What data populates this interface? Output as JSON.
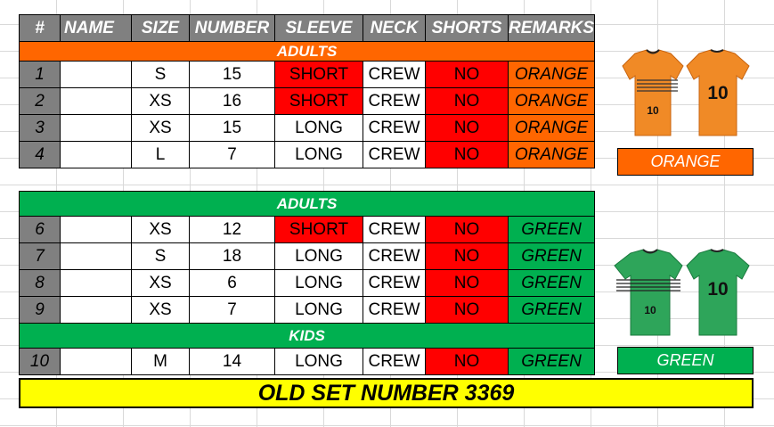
{
  "colors": {
    "orange": "#ff6600",
    "green": "#00b050",
    "red": "#ff0000",
    "gray": "#808080",
    "yellow": "#ffff00"
  },
  "headers": [
    "#",
    "NAME",
    "SIZE",
    "NUMBER",
    "SLEEVE",
    "NECK",
    "SHORTS",
    "REMARKS"
  ],
  "sections": {
    "adults_orange": "ADULTS",
    "adults_green": "ADULTS",
    "kids_green": "KIDS"
  },
  "rows": [
    {
      "num": "1",
      "name": "",
      "size": "S",
      "number": "15",
      "sleeve": "SHORT",
      "neck": "CREW",
      "shorts": "NO",
      "remark": "ORANGE"
    },
    {
      "num": "2",
      "name": "",
      "size": "XS",
      "number": "16",
      "sleeve": "SHORT",
      "neck": "CREW",
      "shorts": "NO",
      "remark": "ORANGE"
    },
    {
      "num": "3",
      "name": "",
      "size": "XS",
      "number": "15",
      "sleeve": "LONG",
      "neck": "CREW",
      "shorts": "NO",
      "remark": "ORANGE"
    },
    {
      "num": "4",
      "name": "",
      "size": "L",
      "number": "7",
      "sleeve": "LONG",
      "neck": "CREW",
      "shorts": "NO",
      "remark": "ORANGE"
    },
    {
      "num": "6",
      "name": "",
      "size": "XS",
      "number": "12",
      "sleeve": "SHORT",
      "neck": "CREW",
      "shorts": "NO",
      "remark": "GREEN"
    },
    {
      "num": "7",
      "name": "",
      "size": "S",
      "number": "18",
      "sleeve": "LONG",
      "neck": "CREW",
      "shorts": "NO",
      "remark": "GREEN"
    },
    {
      "num": "8",
      "name": "",
      "size": "XS",
      "number": "6",
      "sleeve": "LONG",
      "neck": "CREW",
      "shorts": "NO",
      "remark": "GREEN"
    },
    {
      "num": "9",
      "name": "",
      "size": "XS",
      "number": "7",
      "sleeve": "LONG",
      "neck": "CREW",
      "shorts": "NO",
      "remark": "GREEN"
    },
    {
      "num": "10",
      "name": "",
      "size": "M",
      "number": "14",
      "sleeve": "LONG",
      "neck": "CREW",
      "shorts": "NO",
      "remark": "GREEN"
    }
  ],
  "swatches": {
    "orange_label": "ORANGE",
    "green_label": "GREEN"
  },
  "jersey": {
    "front_number": "10",
    "back_number": "10",
    "icon": "jersey-icon"
  },
  "banner": "OLD SET NUMBER 3369"
}
